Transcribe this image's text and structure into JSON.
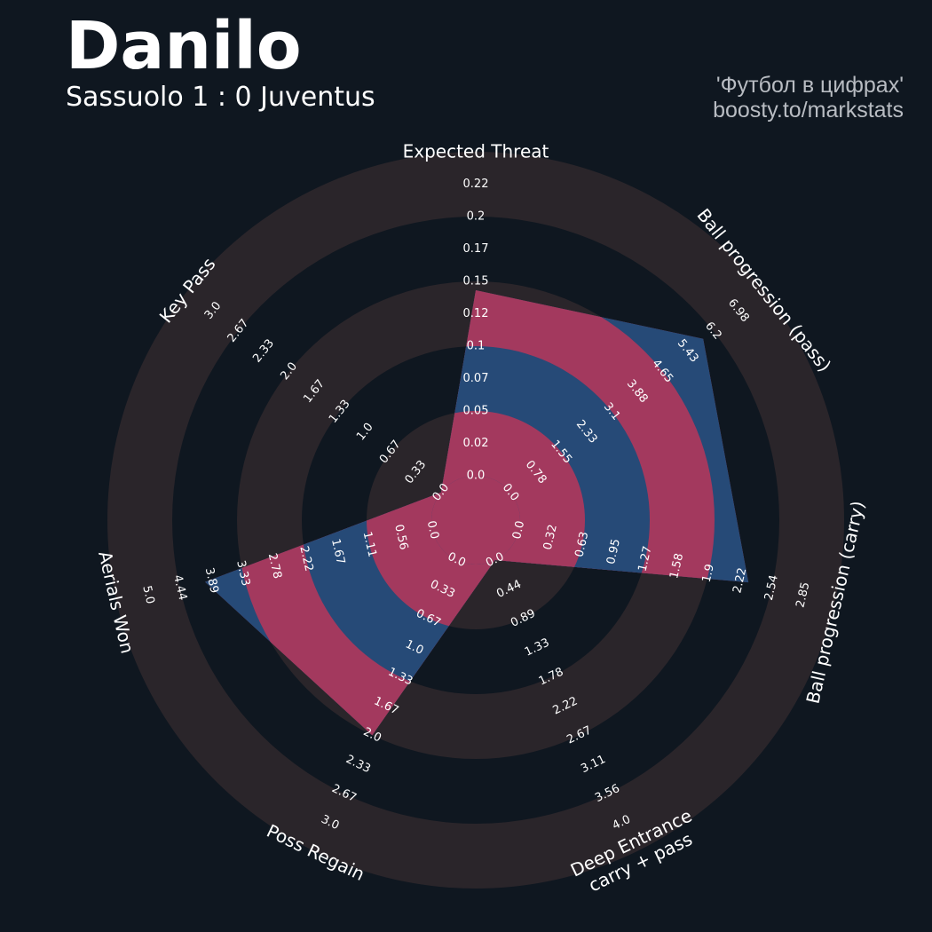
{
  "header": {
    "player": "Danilo",
    "match": "Sassuolo 1 : 0 Juventus"
  },
  "credits": {
    "line1": "'Футбол в цифрах'",
    "line2": "boosty.to/markstats"
  },
  "colors": {
    "background": "#0f1720",
    "ring_dark": "#2a252a",
    "value_blue": "#264a77",
    "value_pink": "#a3395e",
    "text": "#ffffff",
    "credits": "#b8bcc2"
  },
  "chart_data": {
    "type": "radar",
    "title": "Danilo",
    "subtitle": "Sassuolo 1 : 0 Juventus",
    "parameters": [
      {
        "name": "Expected Threat",
        "label_lines": [
          "Expected Threat"
        ],
        "ticks": [
          "0.0",
          "0.02",
          "0.05",
          "0.07",
          "0.1",
          "0.12",
          "0.15",
          "0.17",
          "0.2",
          "0.22"
        ],
        "max": 0.22,
        "value": 0.14
      },
      {
        "name": "Ball progression (pass)",
        "label_lines": [
          "Ball progression (pass)"
        ],
        "ticks": [
          "0.0",
          "0.78",
          "1.55",
          "2.33",
          "3.1",
          "3.88",
          "4.65",
          "5.43",
          "6.2",
          "6.98"
        ],
        "max": 6.98,
        "value": 5.9
      },
      {
        "name": "Ball progression (carry)",
        "label_lines": [
          "Ball progression (carry)"
        ],
        "ticks": [
          "0.0",
          "0.32",
          "0.63",
          "0.95",
          "1.27",
          "1.58",
          "1.9",
          "2.22",
          "2.54",
          "2.85"
        ],
        "max": 2.85,
        "value": 2.3
      },
      {
        "name": "Deep Entrance carry + pass",
        "label_lines": [
          "Deep Entrance",
          "carry + pass"
        ],
        "ticks": [
          "0.0",
          "0.44",
          "0.89",
          "1.33",
          "1.78",
          "2.22",
          "2.67",
          "3.11",
          "3.56",
          "4.0"
        ],
        "max": 4.0,
        "value": 0.0
      },
      {
        "name": "Poss Regain",
        "label_lines": [
          "Poss Regain"
        ],
        "ticks": [
          "0.0",
          "0.33",
          "0.67",
          "1.0",
          "1.33",
          "1.67",
          "2.0",
          "2.33",
          "2.67",
          "3.0"
        ],
        "max": 3.0,
        "value": 2.0
      },
      {
        "name": "Aerials Won",
        "label_lines": [
          "Aerials Won"
        ],
        "ticks": [
          "0.0",
          "0.56",
          "1.11",
          "1.67",
          "2.22",
          "2.78",
          "3.33",
          "3.89",
          "4.44",
          "5.0"
        ],
        "max": 5.0,
        "value": 4.0
      },
      {
        "name": "Key Pass",
        "label_lines": [
          "Key Pass"
        ],
        "ticks": [
          "0.0",
          "0.33",
          "0.67",
          "1.0",
          "1.33",
          "1.67",
          "2.0",
          "2.33",
          "2.67",
          "3.0"
        ],
        "max": 3.0,
        "value": 0.0
      }
    ]
  }
}
